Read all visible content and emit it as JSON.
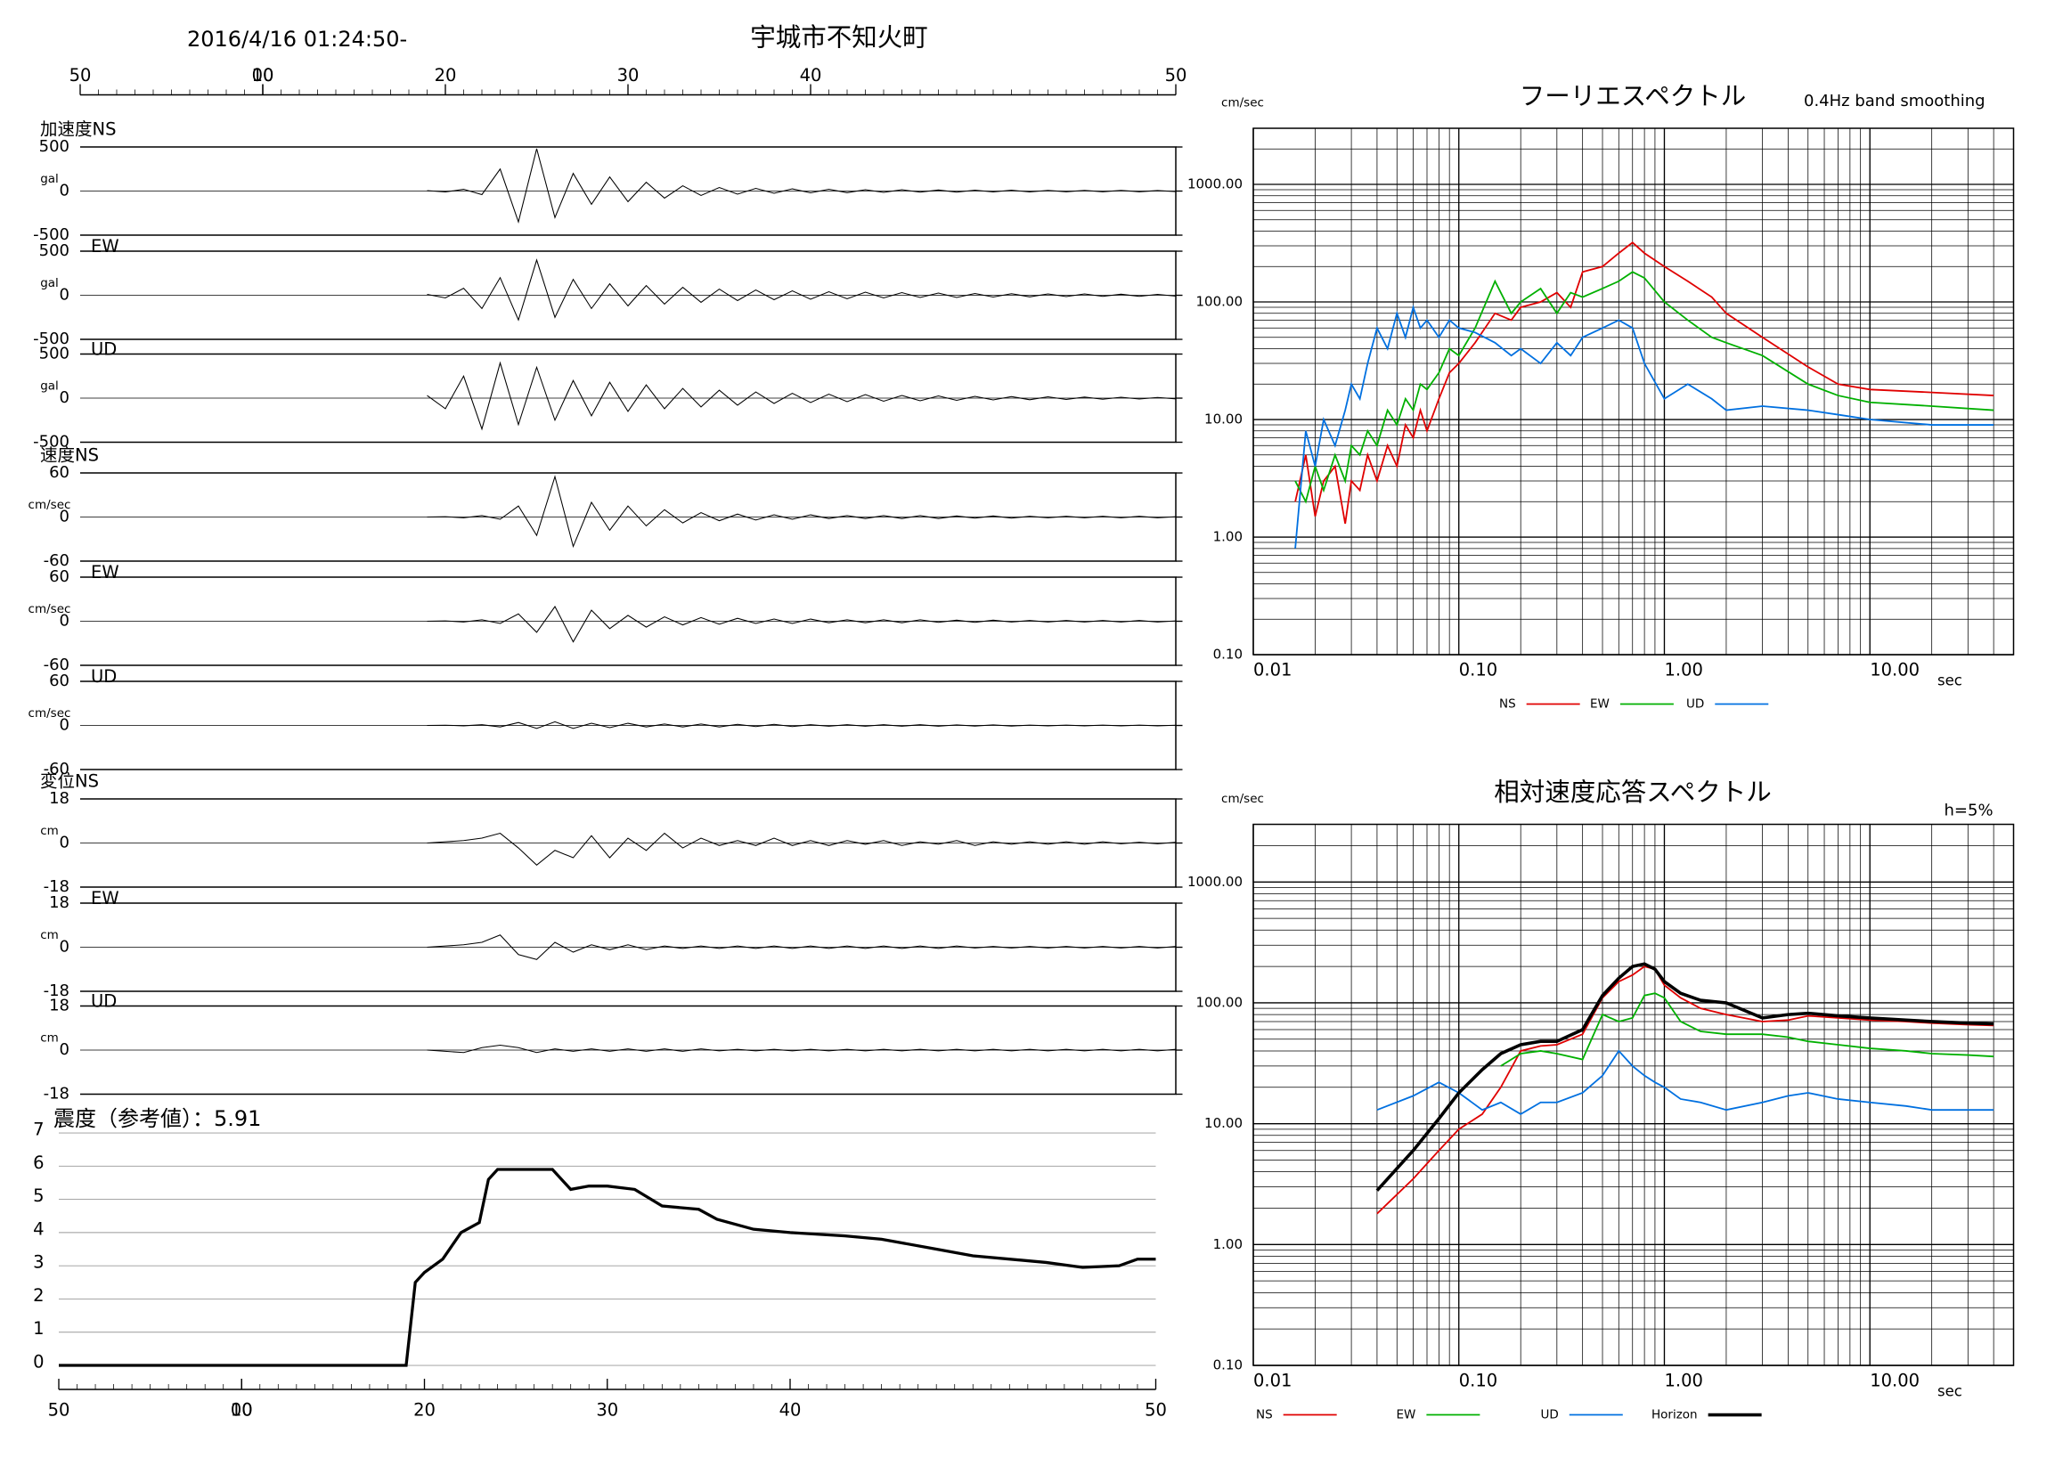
{
  "chart_data": [
    {
      "type": "waveform",
      "title": "2016/4/16 01:24:50-",
      "subtitle": "宇城市不知火町",
      "xlim": [
        0,
        60
      ],
      "xticks": [
        {
          "value": 0,
          "label": "50"
        },
        {
          "value": 10,
          "label": "00"
        },
        10,
        20,
        30,
        40,
        {
          "value": 60,
          "label": "50"
        }
      ],
      "x": [
        19,
        20,
        21,
        22,
        23,
        24,
        25,
        26,
        27,
        28,
        29,
        30,
        31,
        32,
        33,
        34,
        35,
        36,
        37,
        38,
        39,
        40,
        41,
        42,
        43,
        44,
        45,
        46,
        47,
        48,
        49,
        50,
        51,
        52,
        53,
        54,
        55,
        56,
        57,
        58,
        59,
        60
      ],
      "groups": [
        {
          "name": "加速度",
          "unit": "gal",
          "ylim": [
            -500,
            500
          ],
          "yticks": [
            -500,
            0,
            500
          ],
          "traces": [
            {
              "name": "NS",
              "values": [
                5,
                -10,
                20,
                -40,
                250,
                -350,
                480,
                -300,
                200,
                -150,
                160,
                -120,
                100,
                -80,
                60,
                -50,
                40,
                -35,
                30,
                -25,
                25,
                -20,
                20,
                -18,
                15,
                -15,
                15,
                -12,
                12,
                -12,
                10,
                -10,
                10,
                -10,
                8,
                -8,
                8,
                -8,
                8,
                -8,
                6,
                -6
              ]
            },
            {
              "name": "EW",
              "values": [
                10,
                -30,
                80,
                -150,
                200,
                -280,
                400,
                -250,
                180,
                -150,
                130,
                -120,
                110,
                -100,
                90,
                -80,
                70,
                -60,
                60,
                -50,
                50,
                -45,
                40,
                -40,
                35,
                -30,
                30,
                -25,
                25,
                -25,
                20,
                -20,
                18,
                -18,
                15,
                -15,
                15,
                -12,
                12,
                -12,
                10,
                -10
              ]
            },
            {
              "name": "UD",
              "values": [
                30,
                -120,
                250,
                -350,
                400,
                -300,
                350,
                -250,
                200,
                -200,
                180,
                -150,
                150,
                -120,
                110,
                -100,
                90,
                -80,
                70,
                -60,
                55,
                -50,
                45,
                -40,
                40,
                -35,
                30,
                -30,
                25,
                -25,
                20,
                -20,
                18,
                -18,
                15,
                -15,
                12,
                -12,
                10,
                -10,
                8,
                -8
              ]
            }
          ]
        },
        {
          "name": "速度",
          "unit": "cm/sec",
          "ylim": [
            -60,
            60
          ],
          "yticks": [
            -60,
            0,
            60
          ],
          "traces": [
            {
              "name": "NS",
              "values": [
                0,
                0.5,
                -1,
                2,
                -3,
                15,
                -25,
                55,
                -40,
                20,
                -18,
                15,
                -12,
                10,
                -8,
                6,
                -5,
                4,
                -4,
                3,
                -3,
                3,
                -2,
                2,
                -2,
                2,
                -2,
                2,
                -2,
                1.5,
                -1.5,
                1.5,
                -1.5,
                1,
                -1,
                1,
                -1,
                1,
                -1,
                1,
                -1,
                0.5
              ]
            },
            {
              "name": "EW",
              "values": [
                0,
                0.5,
                -1,
                2,
                -3,
                10,
                -15,
                20,
                -28,
                15,
                -10,
                8,
                -8,
                6,
                -5,
                5,
                -4,
                4,
                -3,
                3,
                -3,
                3,
                -2,
                2,
                -2,
                2,
                -2,
                2,
                -1.5,
                1.5,
                -1.5,
                1.5,
                -1,
                1,
                -1,
                1,
                -1,
                1,
                -1,
                1,
                -1,
                0.5
              ]
            },
            {
              "name": "UD",
              "values": [
                0,
                0.3,
                -0.5,
                1,
                -2,
                4,
                -4,
                5,
                -4,
                3,
                -3,
                3,
                -2,
                2,
                -2,
                2,
                -2,
                1.5,
                -1.5,
                1.5,
                -1.5,
                1,
                -1,
                1,
                -1,
                1,
                -1,
                1,
                -1,
                0.8,
                -0.8,
                0.8,
                -0.8,
                0.5,
                -0.5,
                0.5,
                -0.5,
                0.5,
                -0.5,
                0.5,
                -0.5,
                0.3
              ]
            }
          ]
        },
        {
          "name": "変位",
          "unit": "cm",
          "ylim": [
            -18,
            18
          ],
          "yticks": [
            -18,
            0,
            18
          ],
          "traces": [
            {
              "name": "NS",
              "values": [
                0,
                0.5,
                1,
                2,
                4,
                -2,
                -9,
                -3,
                -6,
                3,
                -6,
                2,
                -3,
                4,
                -2,
                2,
                -1,
                1,
                -1,
                2,
                -1,
                1,
                -1,
                1,
                -0.5,
                1,
                -1,
                0.5,
                -0.5,
                1,
                -1,
                0.5,
                -0.5,
                0.5,
                -0.5,
                0.5,
                -0.5,
                0.5,
                -0.3,
                0.3,
                -0.3,
                0.3
              ]
            },
            {
              "name": "EW",
              "values": [
                0,
                0.5,
                1,
                2,
                5,
                -3,
                -5,
                2,
                -2,
                1,
                -1,
                1,
                -1,
                0.5,
                -0.5,
                0.5,
                -0.5,
                0.5,
                -0.5,
                0.5,
                -0.5,
                0.5,
                -0.5,
                0.5,
                -0.5,
                0.5,
                -0.5,
                0.5,
                -0.5,
                0.5,
                -0.3,
                0.3,
                -0.3,
                0.3,
                -0.3,
                0.3,
                -0.3,
                0.3,
                -0.3,
                0.3,
                -0.3,
                0.3
              ]
            },
            {
              "name": "UD",
              "values": [
                0,
                -0.5,
                -1,
                1,
                2,
                1,
                -1,
                0.5,
                -0.5,
                0.5,
                -0.5,
                0.5,
                -0.5,
                0.5,
                -0.5,
                0.5,
                -0.3,
                0.3,
                -0.3,
                0.3,
                -0.3,
                0.3,
                -0.3,
                0.3,
                -0.3,
                0.3,
                -0.3,
                0.3,
                -0.3,
                0.3,
                -0.3,
                0.3,
                -0.3,
                0.3,
                -0.3,
                0.3,
                -0.3,
                0.3,
                -0.3,
                0.3,
                -0.3,
                0.3
              ]
            }
          ]
        }
      ]
    },
    {
      "type": "line",
      "title": "震度（参考値）：5.91",
      "color": "#000000",
      "grid": true,
      "xlim": [
        0,
        60
      ],
      "xticks": [
        {
          "value": 0,
          "label": "50"
        },
        {
          "value": 10,
          "label": "00"
        },
        10,
        20,
        30,
        40,
        {
          "value": 60,
          "label": "50"
        }
      ],
      "ylim": [
        0,
        7
      ],
      "yticks": [
        0,
        1,
        2,
        3,
        4,
        5,
        6,
        7
      ],
      "x": [
        0,
        19,
        19.5,
        20,
        21,
        22,
        23,
        23.5,
        24,
        27,
        28,
        29,
        30,
        31.5,
        33,
        35,
        36,
        38,
        40,
        43,
        45,
        48,
        50,
        54,
        56,
        58,
        59,
        60
      ],
      "values": [
        0,
        0,
        2.5,
        2.8,
        3.2,
        4,
        4.3,
        5.6,
        5.9,
        5.9,
        5.3,
        5.4,
        5.4,
        5.3,
        4.8,
        4.7,
        4.4,
        4.1,
        4,
        3.9,
        3.8,
        3.5,
        3.3,
        3.1,
        2.95,
        3,
        3.2,
        3.2
      ]
    },
    {
      "type": "line",
      "title": "フーリエスペクトル",
      "subtitle": "0.4Hz band smoothing",
      "y_unit": "cm/sec",
      "x_unit": "sec",
      "xscale": "log",
      "yscale": "log",
      "grid": true,
      "xlim": [
        0.01,
        50
      ],
      "xticks": [
        0.01,
        {
          "value": 0.1,
          "label": "0.10"
        },
        {
          "value": 1,
          "label": "1.00"
        },
        {
          "value": 10,
          "label": "10.00"
        }
      ],
      "ylim": [
        0.1,
        3000
      ],
      "yticks": [
        {
          "value": 0.1,
          "label": "0.10"
        },
        {
          "value": 1,
          "label": "1.00"
        },
        {
          "value": 10,
          "label": "10.00"
        },
        {
          "value": 100,
          "label": "100.00"
        },
        {
          "value": 1000,
          "label": "1000.00"
        }
      ],
      "x": [
        0.016,
        0.018,
        0.02,
        0.022,
        0.025,
        0.028,
        0.03,
        0.033,
        0.036,
        0.04,
        0.045,
        0.05,
        0.055,
        0.06,
        0.065,
        0.07,
        0.08,
        0.09,
        0.1,
        0.12,
        0.15,
        0.18,
        0.2,
        0.25,
        0.3,
        0.35,
        0.4,
        0.5,
        0.6,
        0.7,
        0.8,
        1,
        1.3,
        1.7,
        2,
        3,
        5,
        7,
        10,
        20,
        40
      ],
      "series": [
        {
          "name": "NS",
          "color": "#e00000",
          "values": [
            2,
            5,
            1.5,
            3,
            4,
            1.3,
            3,
            2.5,
            5,
            3,
            6,
            4,
            9,
            7,
            12,
            8,
            15,
            25,
            30,
            45,
            80,
            70,
            90,
            100,
            120,
            90,
            180,
            200,
            260,
            320,
            260,
            200,
            150,
            110,
            80,
            50,
            28,
            20,
            18,
            17,
            16
          ]
        },
        {
          "name": "EW",
          "color": "#00b000",
          "values": [
            3,
            2,
            4,
            2.5,
            5,
            3,
            6,
            5,
            8,
            6,
            12,
            9,
            15,
            12,
            20,
            18,
            25,
            40,
            35,
            60,
            150,
            80,
            100,
            130,
            80,
            120,
            110,
            130,
            150,
            180,
            160,
            100,
            70,
            50,
            45,
            35,
            20,
            16,
            14,
            13,
            12
          ]
        },
        {
          "name": "UD",
          "color": "#0070e0",
          "values": [
            0.8,
            8,
            4,
            10,
            6,
            12,
            20,
            15,
            30,
            60,
            40,
            80,
            50,
            90,
            60,
            70,
            50,
            70,
            60,
            55,
            45,
            35,
            40,
            30,
            45,
            35,
            50,
            60,
            70,
            60,
            30,
            15,
            20,
            15,
            12,
            13,
            12,
            11,
            10,
            9,
            9
          ]
        }
      ]
    },
    {
      "type": "line",
      "title": "相対速度応答スペクトル",
      "subtitle": "h=5%",
      "y_unit": "cm/sec",
      "x_unit": "sec",
      "xscale": "log",
      "yscale": "log",
      "grid": true,
      "xlim": [
        0.01,
        50
      ],
      "xticks": [
        0.01,
        {
          "value": 0.1,
          "label": "0.10"
        },
        {
          "value": 1,
          "label": "1.00"
        },
        {
          "value": 10,
          "label": "10.00"
        }
      ],
      "ylim": [
        0.1,
        3000
      ],
      "yticks": [
        {
          "value": 0.1,
          "label": "0.10"
        },
        {
          "value": 1,
          "label": "1.00"
        },
        {
          "value": 10,
          "label": "10.00"
        },
        {
          "value": 100,
          "label": "100.00"
        },
        {
          "value": 1000,
          "label": "1000.00"
        }
      ],
      "x": [
        0.04,
        0.06,
        0.08,
        0.1,
        0.13,
        0.16,
        0.2,
        0.25,
        0.3,
        0.4,
        0.5,
        0.6,
        0.7,
        0.8,
        0.9,
        1,
        1.2,
        1.5,
        2,
        3,
        4,
        5,
        7,
        10,
        15,
        20,
        30,
        40
      ],
      "series": [
        {
          "name": "NS",
          "color": "#e00000",
          "values": [
            1.8,
            3.5,
            6,
            9,
            12,
            20,
            40,
            44,
            45,
            55,
            110,
            150,
            170,
            200,
            190,
            140,
            110,
            90,
            80,
            70,
            72,
            78,
            75,
            72,
            70,
            68,
            66,
            65
          ]
        },
        {
          "name": "EW",
          "color": "#00b000",
          "values": [
            null,
            null,
            null,
            null,
            null,
            30,
            38,
            40,
            38,
            34,
            80,
            70,
            75,
            115,
            120,
            110,
            70,
            58,
            55,
            55,
            52,
            48,
            45,
            42,
            40,
            38,
            37,
            36
          ]
        },
        {
          "name": "UD",
          "color": "#0070e0",
          "values": [
            13,
            17,
            22,
            18,
            13,
            15,
            12,
            15,
            15,
            18,
            25,
            40,
            30,
            25,
            22,
            20,
            16,
            15,
            13,
            15,
            17,
            18,
            16,
            15,
            14,
            13,
            13,
            13
          ]
        },
        {
          "name": "Horizon",
          "color": "#000000",
          "values": [
            2.8,
            6,
            11,
            18,
            28,
            38,
            45,
            48,
            48,
            60,
            115,
            160,
            200,
            210,
            190,
            150,
            120,
            105,
            100,
            75,
            80,
            82,
            78,
            75,
            72,
            70,
            68,
            67
          ]
        }
      ]
    }
  ]
}
